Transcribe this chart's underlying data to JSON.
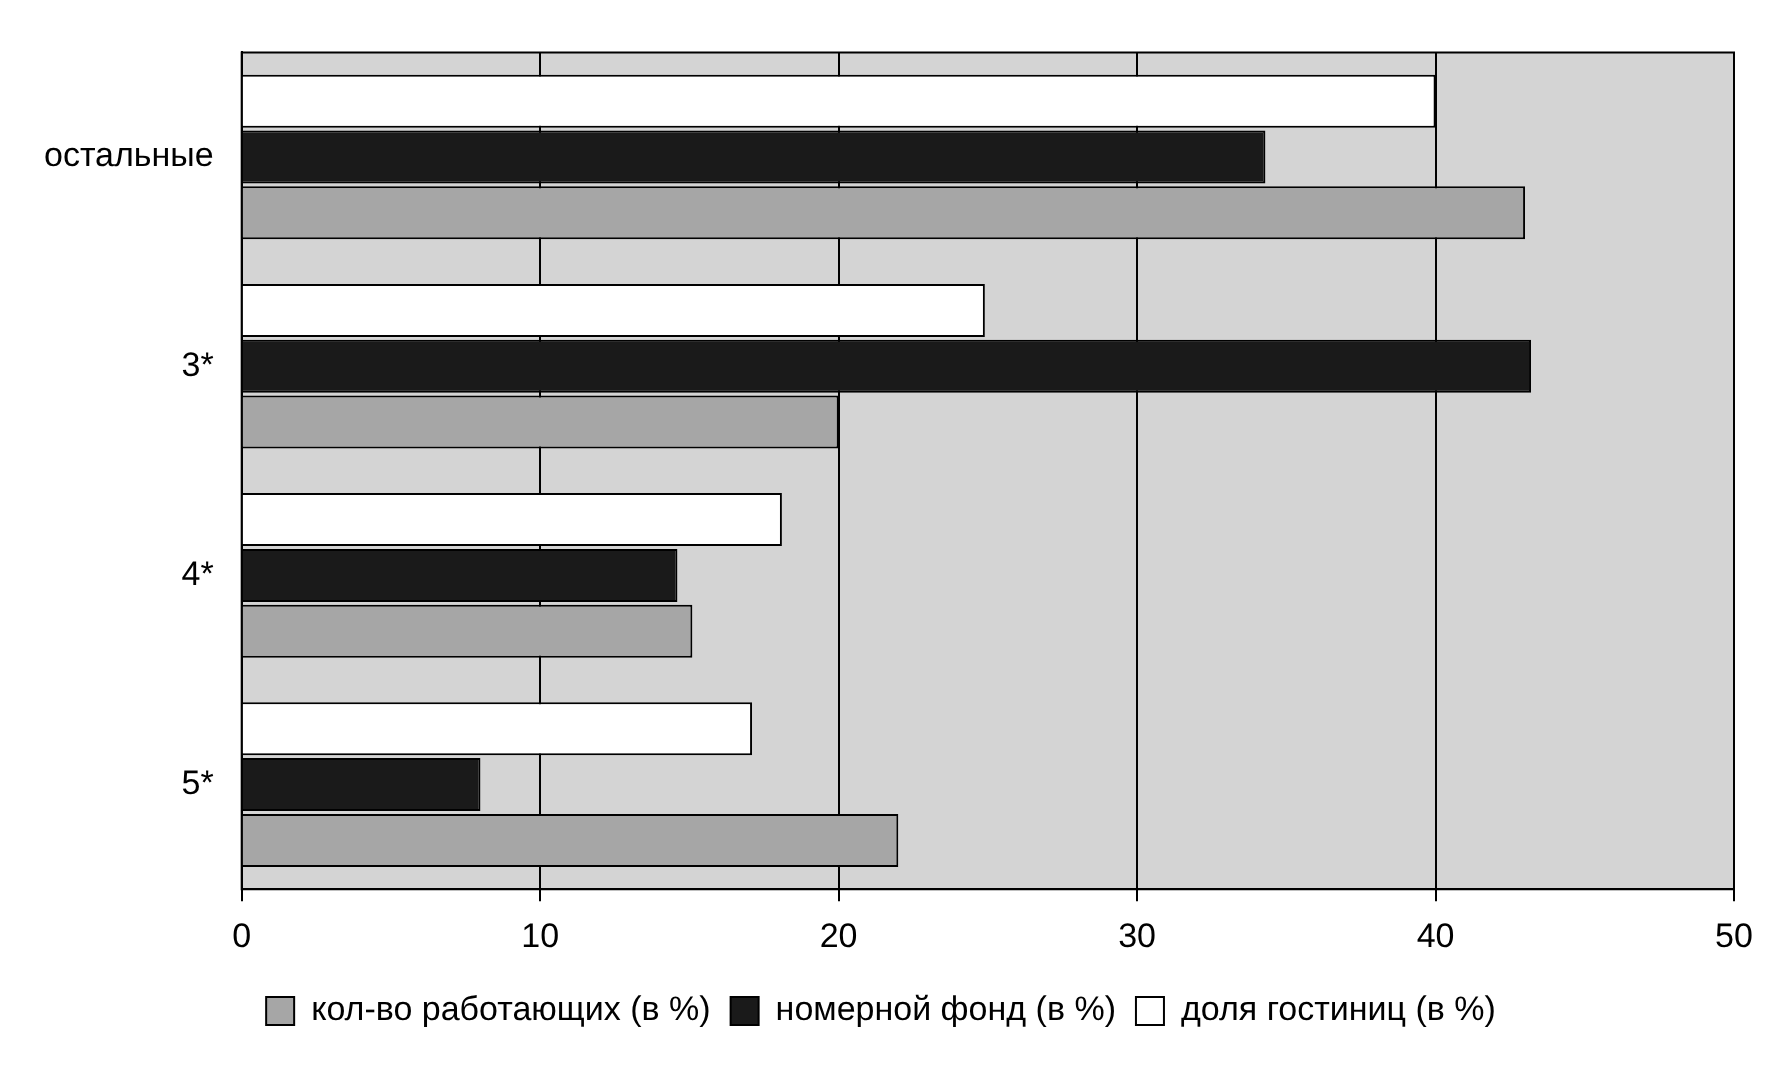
{
  "chart_data": {
    "type": "bar",
    "orientation": "horizontal",
    "categories": [
      "остальные",
      "3*",
      "4*",
      "5*"
    ],
    "series": [
      {
        "name": "кол-во работающих (в %)",
        "color": "#a6a6a6",
        "values": [
          43,
          20,
          15.1,
          22
        ]
      },
      {
        "name": "номерной фонд (в %)",
        "color": "#1a1a1a",
        "values": [
          34.3,
          43.2,
          14.6,
          8
        ]
      },
      {
        "name": "доля гостиниц (в %)",
        "color": "#ffffff",
        "values": [
          40,
          24.9,
          18.1,
          17.1
        ]
      }
    ],
    "xlim": [
      0,
      50
    ],
    "xticks": [
      0,
      10,
      20,
      30,
      40,
      50
    ],
    "grid": "x",
    "legend": "bottom"
  }
}
